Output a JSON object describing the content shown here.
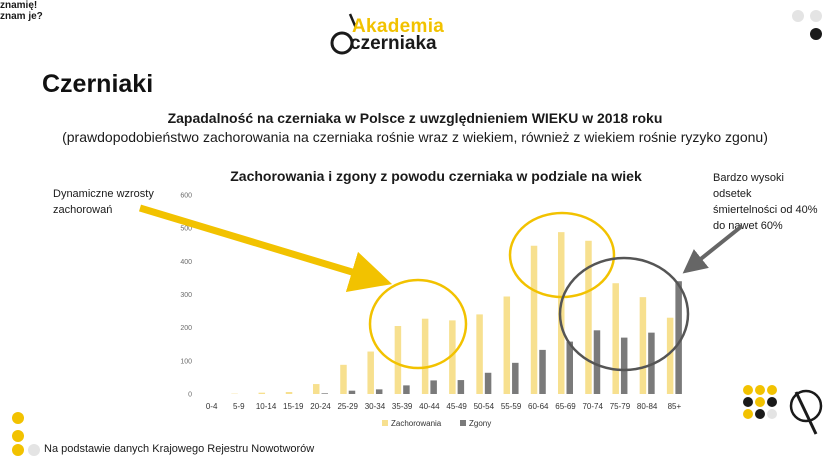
{
  "logo": {
    "word1": "Akademia",
    "word2": "czerniaka"
  },
  "page_title": "Czerniaki",
  "headline": "Zapadalność na czerniaka w Polsce z uwzględnieniem WIEKU w 2018 roku",
  "subheadline": "(prawdopodobieństwo zachorowania na czerniaka rośnie wraz z wiekiem, również z wiekiem rośnie ryzyko zgonu)",
  "annotations": {
    "left": "Dynamiczne wzrosty zachorowań",
    "right": "Bardzo wysoki odsetek śmiertelności od 40% do nawet 60%"
  },
  "source": "Na podstawie danych Krajowego Rejestru Nowotworów",
  "badge": {
    "line1": "znamię!",
    "line2": "znam je?"
  },
  "colors": {
    "incidence": "#f7e08f",
    "deaths": "#7a7a7a",
    "circle_yellow": "#f2c200",
    "circle_dark": "#555555",
    "arrow_yellow": "#f2c200",
    "arrow_dark": "#666666"
  },
  "chart_data": {
    "type": "bar",
    "title": "Zachorowania i zgony z powodu czerniaka w podziale na wiek",
    "categories": [
      "0-4",
      "5-9",
      "10-14",
      "15-19",
      "20-24",
      "25-29",
      "30-34",
      "35-39",
      "40-44",
      "45-49",
      "50-54",
      "55-59",
      "60-64",
      "65-69",
      "70-74",
      "75-79",
      "80-84",
      "85+"
    ],
    "series": [
      {
        "name": "Zachorowania",
        "values": [
          0,
          1,
          4,
          6,
          30,
          88,
          128,
          205,
          227,
          222,
          240,
          294,
          447,
          488,
          462,
          334,
          292,
          230
        ]
      },
      {
        "name": "Zgony",
        "values": [
          0,
          0,
          0,
          0,
          2,
          10,
          14,
          26,
          41,
          42,
          64,
          94,
          133,
          158,
          192,
          170,
          185,
          340
        ]
      }
    ],
    "yticks": [
      0,
      100,
      200,
      300,
      400,
      500,
      600
    ],
    "ylim": [
      0,
      600
    ],
    "grid": false,
    "legend": "bottom"
  }
}
